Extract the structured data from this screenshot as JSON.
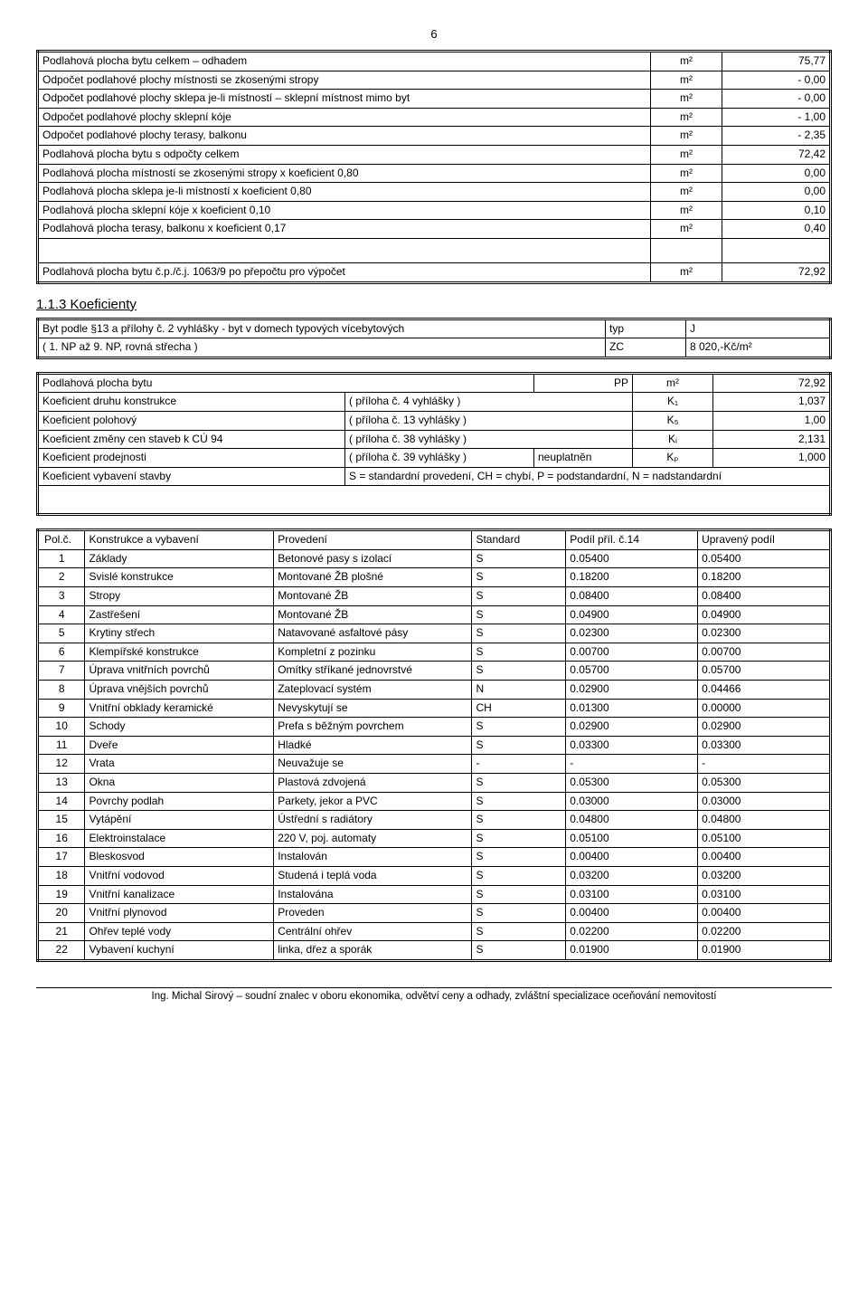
{
  "page_number": "6",
  "table1": {
    "rows": [
      {
        "label": "Podlahová plocha bytu celkem – odhadem",
        "unit": "m²",
        "val": "75,77"
      },
      {
        "label": "Odpočet podlahové plochy místnosti se zkosenými stropy",
        "unit": "m²",
        "val": "- 0,00"
      },
      {
        "label": "Odpočet podlahové plochy sklepa je-li místností – sklepní místnost mimo byt",
        "unit": "m²",
        "val": "- 0,00"
      },
      {
        "label": "Odpočet podlahové plochy sklepní kóje",
        "unit": "m²",
        "val": "- 1,00"
      },
      {
        "label": "Odpočet podlahové plochy terasy, balkonu",
        "unit": "m²",
        "val": "- 2,35"
      },
      {
        "label": "Podlahová plocha bytu s odpočty celkem",
        "unit": "m²",
        "val": "72,42"
      },
      {
        "label": "Podlahová plocha místností se zkosenými stropy x koeficient 0,80",
        "unit": "m²",
        "val": "0,00"
      },
      {
        "label": "Podlahová plocha sklepa je-li místností x koeficient 0,80",
        "unit": "m²",
        "val": "0,00"
      },
      {
        "label": "Podlahová plocha sklepní kóje x koeficient 0,10",
        "unit": "m²",
        "val": "0,10"
      },
      {
        "label": "Podlahová plocha terasy, balkonu x koeficient 0,17",
        "unit": "m²",
        "val": "0,40"
      }
    ],
    "final": {
      "label": "Podlahová plocha bytu č.p./č.j. 1063/9 po přepočtu pro výpočet",
      "unit": "m²",
      "val": "72,92"
    }
  },
  "section_title": "1.1.3  Koeficienty",
  "table2": {
    "r1": {
      "c1": "Byt podle §13 a přílohy č. 2 vyhlášky - byt v domech typových vícebytových",
      "c2": "typ",
      "c3": "J"
    },
    "r2": {
      "c1": "( 1. NP až  9. NP,  rovná střecha )",
      "c2": "ZC",
      "c3": "8 020,-Kč/m²"
    }
  },
  "table3": {
    "r1": {
      "c1": "Podlahová plocha bytu",
      "c2": "",
      "c3": "PP",
      "c4": "m²",
      "c5": "72,92"
    },
    "r2": {
      "c1": "Koeficient druhu konstrukce",
      "c2": "( příloha č. 4 vyhlášky )",
      "c3": "",
      "c4": "K₁",
      "c5": "1,037"
    },
    "r3": {
      "c1": "Koeficient polohový",
      "c2": "( příloha č. 13 vyhlášky )",
      "c3": "",
      "c4": "K₅",
      "c5": "1,00"
    },
    "r4": {
      "c1": "Koeficient změny cen staveb k CÚ 94",
      "c2": "( příloha č. 38 vyhlášky )",
      "c3": "",
      "c4": "Kᵢ",
      "c5": "2,131"
    },
    "r5": {
      "c1": "Koeficient prodejnosti",
      "c2": "( příloha č. 39 vyhlášky )",
      "c3": "neuplatněn",
      "c4": "Kₚ",
      "c5": "1,000"
    },
    "r6": {
      "c1": "Koeficient vybavení stavby",
      "c2": "S = standardní provedení, CH = chybí, P = podstandardní, N = nadstandardní"
    }
  },
  "table4": {
    "header": {
      "c1": "Pol.č.",
      "c2": "Konstrukce a vybavení",
      "c3": "Provedení",
      "c4": "Standard",
      "c5": "Podíl  příl. č.14",
      "c6": "Upravený podíl"
    },
    "rows": [
      {
        "n": "1",
        "name": "Základy",
        "prov": "Betonové pasy s izolací",
        "std": "S",
        "podil": "0.05400",
        "up": "0.05400"
      },
      {
        "n": "2",
        "name": "Svislé konstrukce",
        "prov": "Montované ŽB plošné",
        "std": "S",
        "podil": "0.18200",
        "up": "0.18200"
      },
      {
        "n": "3",
        "name": "Stropy",
        "prov": "Montované ŽB",
        "std": "S",
        "podil": "0.08400",
        "up": "0.08400"
      },
      {
        "n": "4",
        "name": "Zastřešení",
        "prov": "Montované ŽB",
        "std": "S",
        "podil": "0.04900",
        "up": "0.04900"
      },
      {
        "n": "5",
        "name": "Krytiny střech",
        "prov": "Natavované asfaltové pásy",
        "std": "S",
        "podil": "0.02300",
        "up": "0.02300"
      },
      {
        "n": "6",
        "name": "Klempířské konstrukce",
        "prov": "Kompletní z pozinku",
        "std": "S",
        "podil": "0.00700",
        "up": "0.00700"
      },
      {
        "n": "7",
        "name": "Úprava vnitřních  povrchů",
        "prov": "Omítky stříkané jednovrstvé",
        "std": "S",
        "podil": "0.05700",
        "up": "0.05700"
      },
      {
        "n": "8",
        "name": "Úprava vnějších  povrchů",
        "prov": "Zateplovací systém",
        "std": "N",
        "podil": "0.02900",
        "up": "0.04466"
      },
      {
        "n": "9",
        "name": "Vnitřní obklady keramické",
        "prov": "Nevyskytují se",
        "std": "CH",
        "podil": "0.01300",
        "up": "0.00000"
      },
      {
        "n": "10",
        "name": "Schody",
        "prov": "Prefa s běžným povrchem",
        "std": "S",
        "podil": "0.02900",
        "up": "0.02900"
      },
      {
        "n": "11",
        "name": "Dveře",
        "prov": "Hladké",
        "std": "S",
        "podil": "0.03300",
        "up": "0.03300"
      },
      {
        "n": "12",
        "name": "Vrata",
        "prov": "Neuvažuje se",
        "std": "-",
        "podil": "-",
        "up": "-"
      },
      {
        "n": "13",
        "name": "Okna",
        "prov": "Plastová zdvojená",
        "std": "S",
        "podil": "0.05300",
        "up": "0.05300"
      },
      {
        "n": "14",
        "name": "Povrchy podlah",
        "prov": "Parkety, jekor a PVC",
        "std": "S",
        "podil": "0.03000",
        "up": "0.03000"
      },
      {
        "n": "15",
        "name": "Vytápění",
        "prov": "Ústřední s radiátory",
        "std": "S",
        "podil": "0.04800",
        "up": "0.04800"
      },
      {
        "n": "16",
        "name": "Elektroinstalace",
        "prov": "220 V, poj. automaty",
        "std": "S",
        "podil": "0.05100",
        "up": "0.05100"
      },
      {
        "n": "17",
        "name": "Bleskosvod",
        "prov": "Instalován",
        "std": "S",
        "podil": "0.00400",
        "up": "0.00400"
      },
      {
        "n": "18",
        "name": "Vnitřní vodovod",
        "prov": "Studená i teplá voda",
        "std": "S",
        "podil": "0.03200",
        "up": "0.03200"
      },
      {
        "n": "19",
        "name": "Vnitřní kanalizace",
        "prov": "Instalována",
        "std": "S",
        "podil": "0.03100",
        "up": "0.03100"
      },
      {
        "n": "20",
        "name": "Vnitřní plynovod",
        "prov": "Proveden",
        "std": "S",
        "podil": "0.00400",
        "up": "0.00400"
      },
      {
        "n": "21",
        "name": "Ohřev teplé vody",
        "prov": "Centrální ohřev",
        "std": "S",
        "podil": "0.02200",
        "up": "0.02200"
      },
      {
        "n": "22",
        "name": "Vybavení kuchyní",
        "prov": "linka, dřez a sporák",
        "std": "S",
        "podil": "0.01900",
        "up": "0.01900"
      }
    ]
  },
  "footer": "Ing. Michal Sirový – soudní znalec v oboru ekonomika, odvětví ceny a odhady, zvláštní specializace oceňování nemovitostí"
}
